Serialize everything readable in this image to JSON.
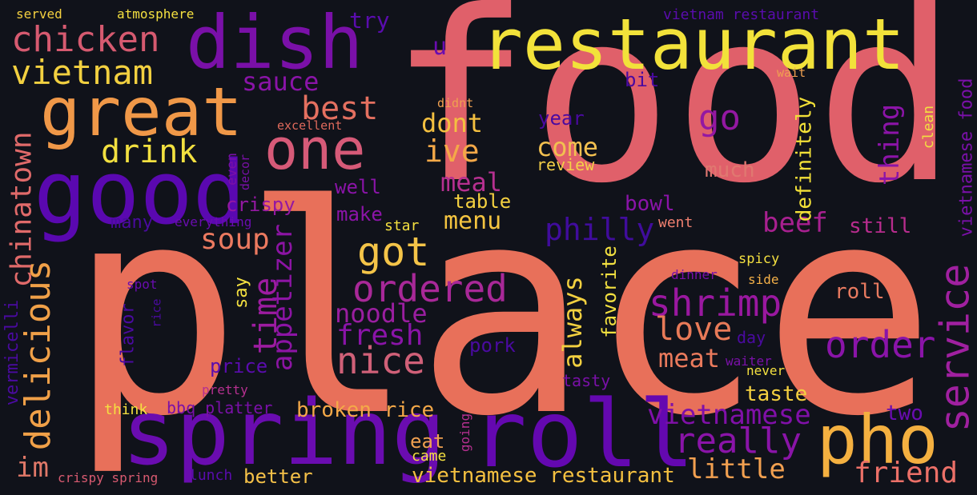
{
  "background": "#10121a",
  "words": [
    {
      "text": "food",
      "color": "#e0606a"
    },
    {
      "text": "place",
      "color": "#e8705a"
    },
    {
      "text": "restaurant",
      "color": "#f2e23a"
    },
    {
      "text": "dish",
      "color": "#7a10a8"
    },
    {
      "text": "spring",
      "color": "#6a0cb0"
    },
    {
      "text": "roll",
      "color": "#6408b0"
    },
    {
      "text": "good",
      "color": "#5a08b0"
    },
    {
      "text": "great",
      "color": "#f09848"
    },
    {
      "text": "one",
      "color": "#d65a78"
    },
    {
      "text": "pho",
      "color": "#f4b040"
    },
    {
      "text": "chicken",
      "color": "#d65a70"
    },
    {
      "text": "vietnam",
      "color": "#f2d040"
    },
    {
      "text": "delicious",
      "color": "#f0a048"
    },
    {
      "text": "service",
      "color": "#a020a0"
    },
    {
      "text": "order",
      "color": "#8a14a8"
    },
    {
      "text": "ordered",
      "color": "#a82898"
    },
    {
      "text": "nice",
      "color": "#d06078"
    },
    {
      "text": "shrimp",
      "color": "#9a18a0"
    },
    {
      "text": "really",
      "color": "#8a14a8"
    },
    {
      "text": "got",
      "color": "#f4c448"
    },
    {
      "text": "drink",
      "color": "#f2e040"
    },
    {
      "text": "best",
      "color": "#e47060"
    },
    {
      "text": "go",
      "color": "#9418a2"
    },
    {
      "text": "love",
      "color": "#e87a58"
    },
    {
      "text": "soup",
      "color": "#ec7a60"
    },
    {
      "text": "time",
      "color": "#9c1ca0"
    },
    {
      "text": "chinatown",
      "color": "#e06a6a"
    },
    {
      "text": "appetizer",
      "color": "#8c14a4"
    },
    {
      "text": "vietnamese",
      "color": "#8010a8"
    },
    {
      "text": "philly",
      "color": "#400c9c"
    },
    {
      "text": "menu",
      "color": "#f4c440"
    },
    {
      "text": "meal",
      "color": "#b63090"
    },
    {
      "text": "ive",
      "color": "#f4a848"
    },
    {
      "text": "dont",
      "color": "#f4c040"
    },
    {
      "text": "sauce",
      "color": "#8a14a8"
    },
    {
      "text": "fresh",
      "color": "#8a14a8"
    },
    {
      "text": "noodle",
      "color": "#9a1ea0"
    },
    {
      "text": "come",
      "color": "#f2c050"
    },
    {
      "text": "meat",
      "color": "#ea7a5c"
    },
    {
      "text": "beef",
      "color": "#a82090"
    },
    {
      "text": "thing",
      "color": "#8c14a8"
    },
    {
      "text": "friend",
      "color": "#ec7068"
    },
    {
      "text": "little",
      "color": "#f2a050"
    },
    {
      "text": "always",
      "color": "#f2d040"
    },
    {
      "text": "im",
      "color": "#e07868"
    },
    {
      "text": "vietnamese restaurant",
      "color": "#f4c040"
    },
    {
      "text": "broken rice",
      "color": "#f4a848"
    },
    {
      "text": "vietnamese food",
      "color": "#7a10a8"
    },
    {
      "text": "definitely",
      "color": "#f2e038"
    },
    {
      "text": "much",
      "color": "#e07870"
    },
    {
      "text": "bowl",
      "color": "#8a14a8"
    },
    {
      "text": "still",
      "color": "#b82c8e"
    },
    {
      "text": "roll",
      "color": "#e87a60"
    },
    {
      "text": "taste",
      "color": "#f4d040"
    },
    {
      "text": "two",
      "color": "#6a0cb0"
    },
    {
      "text": "eat",
      "color": "#f0a050"
    },
    {
      "text": "better",
      "color": "#f4c048"
    },
    {
      "text": "table",
      "color": "#f4d040"
    },
    {
      "text": "make",
      "color": "#8c14a8"
    },
    {
      "text": "well",
      "color": "#8a14a8"
    },
    {
      "text": "crispy",
      "color": "#9418a2"
    },
    {
      "text": "many",
      "color": "#4a0aa0"
    },
    {
      "text": "vermicelli",
      "color": "#4a0aa0"
    },
    {
      "text": "flavor",
      "color": "#4a0aa0"
    },
    {
      "text": "price",
      "color": "#5a0cae"
    },
    {
      "text": "say",
      "color": "#f4e040"
    },
    {
      "text": "favorite",
      "color": "#f2e040"
    },
    {
      "text": "pork",
      "color": "#4a0aa0"
    },
    {
      "text": "year",
      "color": "#4a0aa0"
    },
    {
      "text": "review",
      "color": "#f4d048"
    },
    {
      "text": "u",
      "color": "#6a0cb0"
    },
    {
      "text": "try",
      "color": "#5a0cae"
    },
    {
      "text": "bit",
      "color": "#4a0aa0"
    },
    {
      "text": "clean",
      "color": "#f2e040"
    },
    {
      "text": "wait",
      "color": "#f0a050"
    },
    {
      "text": "didnt",
      "color": "#f0a050"
    },
    {
      "text": "excellent",
      "color": "#e06a5c"
    },
    {
      "text": "even",
      "color": "#7a10a8"
    },
    {
      "text": "decor",
      "color": "#7a10a8"
    },
    {
      "text": "everything",
      "color": "#6a0cb0"
    },
    {
      "text": "star",
      "color": "#f4e040"
    },
    {
      "text": "went",
      "color": "#f08070"
    },
    {
      "text": "spicy",
      "color": "#f4e040"
    },
    {
      "text": "dinner",
      "color": "#7a10a8"
    },
    {
      "text": "side",
      "color": "#f4b048"
    },
    {
      "text": "day",
      "color": "#4a0aa0"
    },
    {
      "text": "waiter",
      "color": "#7a10a8"
    },
    {
      "text": "never",
      "color": "#f4e040"
    },
    {
      "text": "tasty",
      "color": "#7a10a8"
    },
    {
      "text": "spot",
      "color": "#6a0cb0"
    },
    {
      "text": "rice",
      "color": "#4a0aa0"
    },
    {
      "text": "pretty",
      "color": "#b63090"
    },
    {
      "text": "think",
      "color": "#f4e040"
    },
    {
      "text": "bbq platter",
      "color": "#7a10a8"
    },
    {
      "text": "going",
      "color": "#b63090"
    },
    {
      "text": "came",
      "color": "#f4e040"
    },
    {
      "text": "lunch",
      "color": "#5a0cae"
    },
    {
      "text": "crispy spring",
      "color": "#d85a70"
    },
    {
      "text": "served",
      "color": "#f4d040"
    },
    {
      "text": "atmosphere",
      "color": "#f4e040"
    },
    {
      "text": "vietnam restaurant",
      "color": "#5a0cae"
    }
  ]
}
